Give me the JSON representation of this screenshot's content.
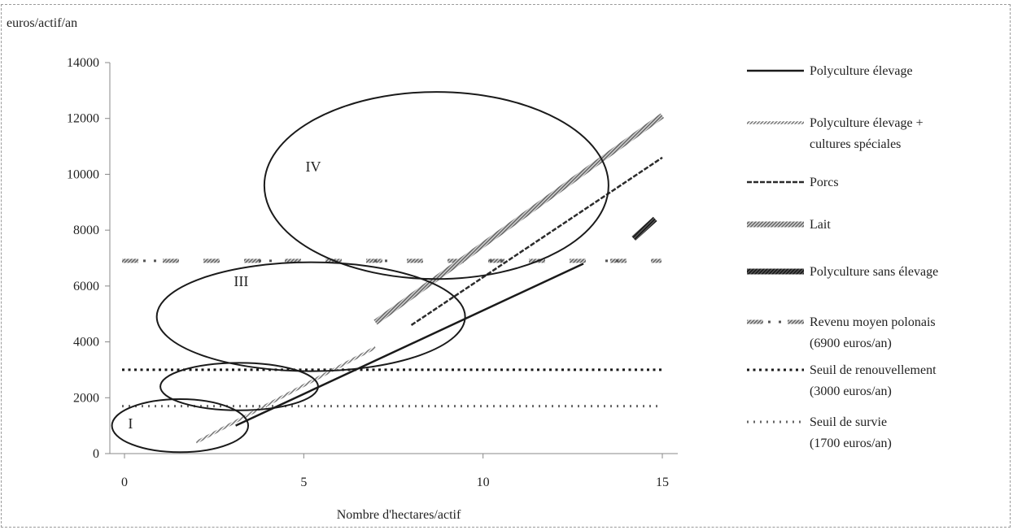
{
  "chart_data": {
    "type": "line",
    "title": "",
    "xlabel": "Nombre d'hectares/actif",
    "ylabel": "euros/actif/an",
    "xlim": [
      0,
      15
    ],
    "ylim": [
      0,
      14000
    ],
    "x_ticks": [
      0,
      5,
      10,
      15
    ],
    "y_ticks": [
      0,
      2000,
      4000,
      6000,
      8000,
      10000,
      12000,
      14000
    ],
    "grid": false,
    "legend_position": "right",
    "series": [
      {
        "name": "Polyculture élevage",
        "style": "solid",
        "color": "#1a1a1a",
        "x": [
          3.1,
          12.8
        ],
        "y": [
          1000,
          6800
        ]
      },
      {
        "name": "Polyculture élevage + cultures spéciales",
        "style": "fine-hatch",
        "color": "#8a8a8a",
        "x": [
          2.0,
          7.0
        ],
        "y": [
          400,
          3800
        ]
      },
      {
        "name": "Porcs",
        "style": "dashed",
        "color": "#333333",
        "x": [
          8.0,
          15.0
        ],
        "y": [
          4600,
          10600
        ]
      },
      {
        "name": "Lait",
        "style": "thick-hatch",
        "color": "#8a8a8a",
        "x": [
          7.0,
          15.0
        ],
        "y": [
          4700,
          12100
        ]
      },
      {
        "name": "Polyculture sans élevage",
        "style": "thick",
        "color": "#2a2a2a",
        "x": [
          14.2,
          14.8
        ],
        "y": [
          7700,
          8400
        ]
      }
    ],
    "thresholds": [
      {
        "name": "Revenu moyen polonais (6900 euros/an)",
        "value": 6900,
        "style": "hatch-dot"
      },
      {
        "name": "Seuil de renouvellement (3000 euros/an)",
        "value": 3000,
        "style": "dots"
      },
      {
        "name": "Seuil de survie (1700 euros/an)",
        "value": 1700,
        "style": "crosses"
      }
    ],
    "legend": [
      {
        "lines": [
          "Polyculture élevage"
        ],
        "style": "solid"
      },
      {
        "lines": [
          "Polyculture élevage +",
          "cultures spéciales"
        ],
        "style": "fine-hatch"
      },
      {
        "lines": [
          "Porcs"
        ],
        "style": "dashed"
      },
      {
        "lines": [
          "Lait"
        ],
        "style": "thick-hatch"
      },
      {
        "lines": [
          "Polyculture sans élevage"
        ],
        "style": "thick"
      },
      {
        "lines": [
          "Revenu moyen polonais",
          "(6900 euros/an)"
        ],
        "style": "hatch-dot"
      },
      {
        "lines": [
          "Seuil de renouvellement",
          "(3000 euros/an)"
        ],
        "style": "dots"
      },
      {
        "lines": [
          "Seuil de survie",
          "(1700 euros/an)"
        ],
        "style": "crosses"
      }
    ],
    "groups": [
      {
        "label": "I",
        "label_pos": [
          0.2,
          900
        ],
        "cx": 3.1,
        "cy": 1000,
        "rx": 3.8,
        "ry": 1900
      },
      {
        "label": "",
        "cx": 6.4,
        "cy": 2400,
        "rx": 4.4,
        "ry": 1700
      },
      {
        "label": "III",
        "label_pos": [
          6.1,
          6000
        ],
        "cx": 10.4,
        "cy": 4900,
        "rx": 8.6,
        "ry": 3900
      },
      {
        "label": "IV",
        "label_pos": [
          10.1,
          10100
        ],
        "cx": 17.4,
        "cy": 9600,
        "rx": 9.6,
        "ry": 6700
      }
    ]
  }
}
